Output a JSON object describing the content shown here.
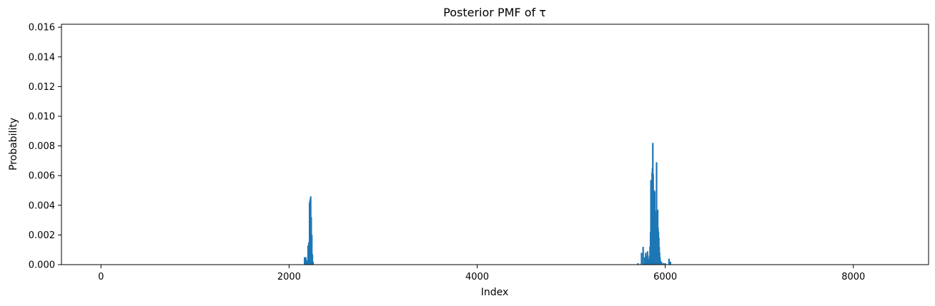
{
  "chart_data": {
    "type": "bar",
    "title": "Posterior PMF of τ",
    "xlabel": "Index",
    "ylabel": "Probability",
    "xlim": [
      -420,
      8800
    ],
    "ylim": [
      0,
      0.0162
    ],
    "xticks": [
      0,
      2000,
      4000,
      6000,
      8000
    ],
    "yticks": [
      0.0,
      0.002,
      0.004,
      0.006,
      0.008,
      0.01,
      0.012,
      0.014,
      0.016
    ],
    "xtick_labels": [
      "0",
      "2000",
      "4000",
      "6000",
      "8000"
    ],
    "ytick_labels": [
      "0.000",
      "0.002",
      "0.004",
      "0.006",
      "0.008",
      "0.010",
      "0.012",
      "0.014",
      "0.016"
    ],
    "grid": false,
    "bar_color": "#1f77b4",
    "x": [
      2165,
      2178,
      2190,
      2202,
      2210,
      2218,
      2224,
      2230,
      2236,
      2242,
      2248,
      2255,
      5710,
      5748,
      5765,
      5782,
      5792,
      5800,
      5812,
      5822,
      5832,
      5838,
      5844,
      5848,
      5852,
      5856,
      5860,
      5864,
      5868,
      5872,
      5876,
      5880,
      5884,
      5888,
      5892,
      5896,
      5900,
      5904,
      5908,
      5912,
      5916,
      5920,
      5924,
      5928,
      5932,
      5936,
      5940,
      5944,
      5948,
      5960,
      5980,
      6000,
      6040,
      6055
    ],
    "values": [
      0.0005,
      0.0005,
      0.0003,
      0.0013,
      0.0015,
      0.0042,
      0.0044,
      0.0046,
      0.0032,
      0.002,
      0.0007,
      0.0002,
      0.0001,
      0.0008,
      0.0012,
      0.0005,
      0.0008,
      0.0006,
      0.0009,
      0.0004,
      0.0006,
      0.0012,
      0.0022,
      0.0057,
      0.0055,
      0.0034,
      0.0062,
      0.0065,
      0.0082,
      0.0061,
      0.0043,
      0.0032,
      0.005,
      0.0049,
      0.0036,
      0.0027,
      0.0025,
      0.0026,
      0.0069,
      0.0027,
      0.0023,
      0.0037,
      0.0025,
      0.0022,
      0.0018,
      0.0012,
      0.0008,
      0.0005,
      0.0003,
      0.0002,
      0.0001,
      0.0001,
      0.0004,
      0.0002
    ]
  }
}
